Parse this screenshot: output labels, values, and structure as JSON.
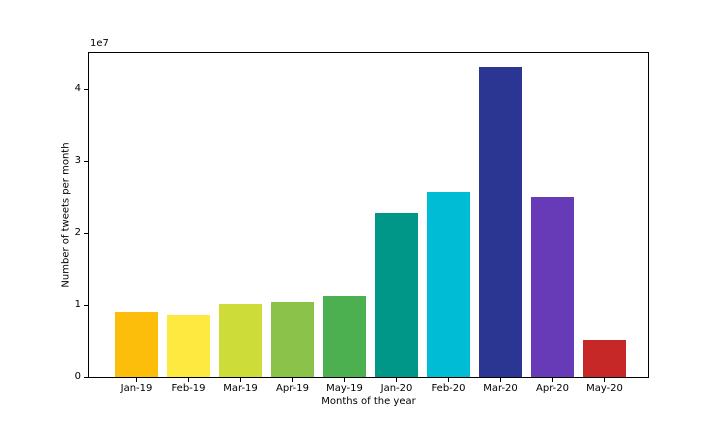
{
  "chart_data": {
    "type": "bar",
    "title": "",
    "xlabel": "Months of the year",
    "ylabel": "Number of tweets per month",
    "offset_label": "1e7",
    "categories": [
      "Jan-19",
      "Feb-19",
      "Mar-19",
      "Apr-19",
      "May-19",
      "Jan-20",
      "Feb-20",
      "Mar-20",
      "Apr-20",
      "May-20"
    ],
    "values": [
      9000000,
      8600000,
      10200000,
      10400000,
      11200000,
      22800000,
      25700000,
      43000000,
      25000000,
      5100000
    ],
    "bar_colors": [
      "#fcbe0b",
      "#fde940",
      "#cddc39",
      "#8bc34a",
      "#4caf50",
      "#009688",
      "#00bcd4",
      "#2a3692",
      "#673ab7",
      "#c62828"
    ],
    "ylim": [
      0,
      45000000
    ],
    "y_ticks": [
      0,
      10000000,
      20000000,
      30000000,
      40000000
    ],
    "y_tick_labels": [
      "0",
      "1",
      "2",
      "3",
      "4"
    ],
    "grid": false,
    "legend": null,
    "colors": {
      "spine": "#000000",
      "text": "#000000",
      "background": "#ffffff"
    }
  }
}
